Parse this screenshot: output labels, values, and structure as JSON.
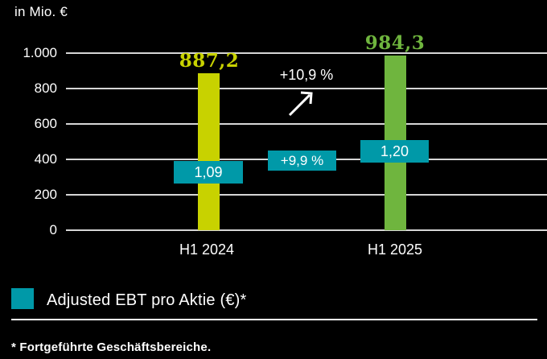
{
  "header": {
    "title": "in Mio. €"
  },
  "colors": {
    "background": "#000000",
    "gridline": "#d6d6d6",
    "bar_2024": "#c8d200",
    "bar_2025": "#6fb53e",
    "teal_badge": "#0099a8",
    "text": "#ffffff"
  },
  "chart_data": {
    "type": "bar",
    "title": "in Mio. €",
    "categories": [
      "H1 2024",
      "H1 2025"
    ],
    "series": [
      {
        "name": "in Mio. €",
        "values": [
          887.2,
          984.3
        ],
        "labels": [
          "887,2",
          "984,3"
        ],
        "colors": [
          "#c8d200",
          "#6fb53e"
        ]
      },
      {
        "name": "Adjusted EBT pro Aktie (€)*",
        "values": [
          1.09,
          1.2
        ],
        "labels": [
          "1,09",
          "1,20"
        ],
        "color": "#0099a8"
      }
    ],
    "annotations": {
      "total_change": "+10,9 %",
      "per_share_change": "+9,9 %"
    },
    "yticks": [
      "1.000",
      "800",
      "600",
      "400",
      "200",
      "0"
    ],
    "ylim": [
      0,
      1000
    ],
    "grid": true,
    "legend_position": "bottom-left"
  },
  "legend": {
    "label": "Adjusted EBT pro Aktie (€)*",
    "swatch_color": "#0099a8"
  },
  "footnote": "* Fortgeführte Geschäftsbereiche."
}
